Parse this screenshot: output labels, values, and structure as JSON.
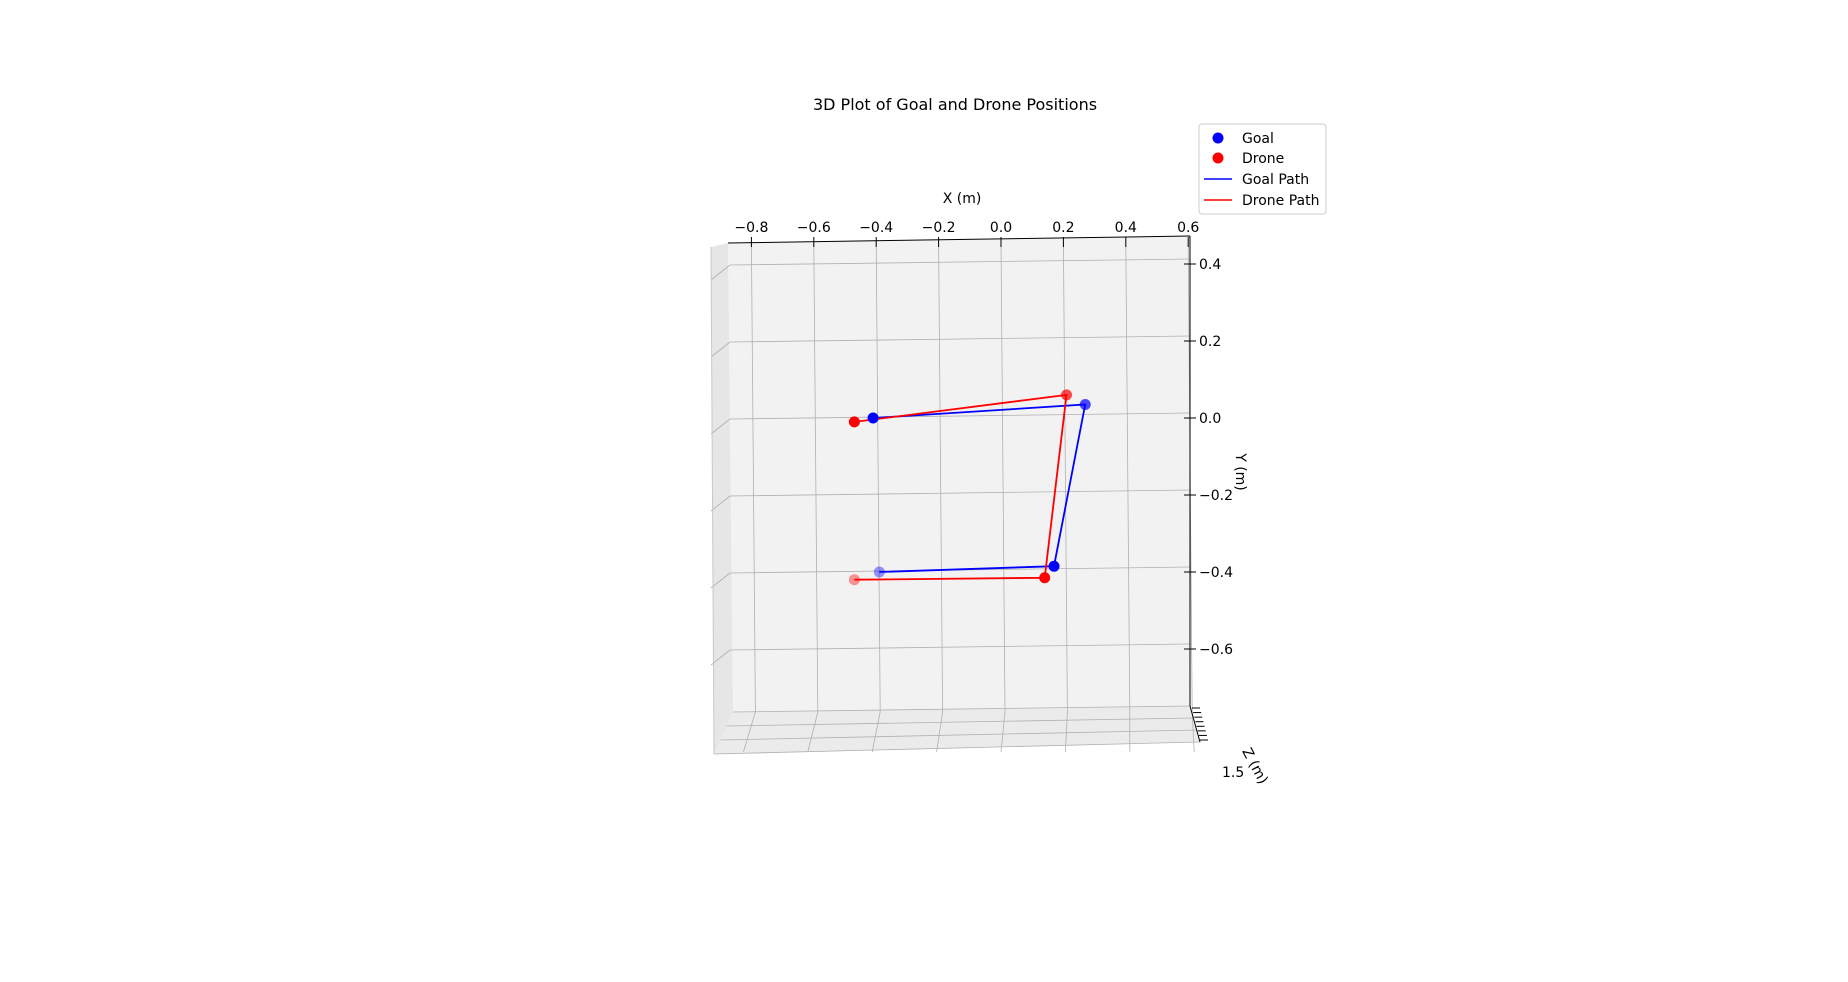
{
  "chart_data": {
    "type": "scatter",
    "projection": "3d",
    "title": "3D Plot of Goal and Drone Positions",
    "xlabel": "X (m)",
    "ylabel": "Y (m)",
    "zlabel": "Z (m)",
    "xlim": [
      -0.85,
      0.6
    ],
    "ylim": [
      -0.75,
      0.45
    ],
    "x_ticks": [
      "−0.8",
      "−0.6",
      "−0.4",
      "−0.2",
      "0.0",
      "0.2",
      "0.4",
      "0.6"
    ],
    "y_ticks": [
      "0.4",
      "0.2",
      "0.0",
      "−0.2",
      "−0.4",
      "−0.6"
    ],
    "z_ticks": [
      "1.5"
    ],
    "grid": true,
    "legend_position": "top-right",
    "legend": [
      "Goal",
      "Drone",
      "Goal Path",
      "Drone Path"
    ],
    "series": [
      {
        "name": "Goal",
        "color": "#0000ff",
        "points": [
          {
            "x": -0.41,
            "y": 0.0
          },
          {
            "x": 0.27,
            "y": 0.035
          },
          {
            "x": 0.17,
            "y": -0.385
          },
          {
            "x": -0.39,
            "y": -0.4
          }
        ]
      },
      {
        "name": "Drone",
        "color": "#ff0000",
        "points": [
          {
            "x": -0.47,
            "y": -0.01
          },
          {
            "x": 0.21,
            "y": 0.06
          },
          {
            "x": 0.14,
            "y": -0.415
          },
          {
            "x": -0.47,
            "y": -0.42
          }
        ]
      }
    ]
  }
}
